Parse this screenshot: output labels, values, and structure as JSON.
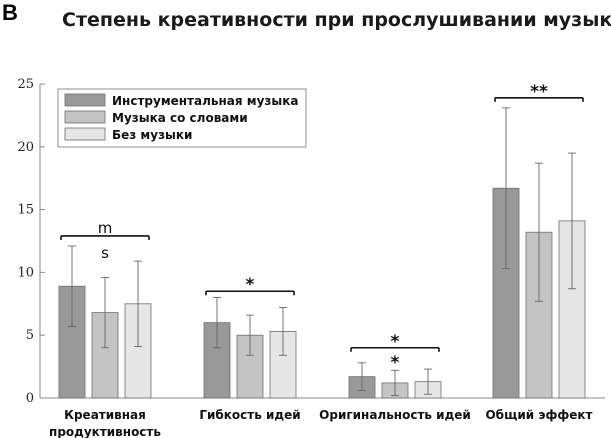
{
  "panel_label": "B",
  "chart_data": {
    "type": "bar",
    "title": "Степень креативности при прослушивании музыки",
    "xlabel": "",
    "ylabel": "",
    "ylim": [
      0,
      25
    ],
    "yticks": [
      0,
      5,
      10,
      15,
      20,
      25
    ],
    "grid": false,
    "legend_position": "top-left",
    "categories": [
      [
        "Креативная",
        "продуктивность"
      ],
      [
        "Гибкость идей"
      ],
      [
        "Оригинальность идей"
      ],
      [
        "Общий эффект"
      ]
    ],
    "series": [
      {
        "name": "Инструментальная музыка",
        "color": "#999999",
        "values": [
          8.9,
          6.0,
          1.7,
          16.7
        ],
        "error": [
          3.2,
          2.0,
          1.1,
          6.4
        ]
      },
      {
        "name": "Музыка со словами",
        "color": "#c4c4c4",
        "values": [
          6.8,
          5.0,
          1.2,
          13.2
        ],
        "error": [
          2.8,
          1.6,
          1.0,
          5.5
        ]
      },
      {
        "name": "Без музыки",
        "color": "#e6e6e6",
        "values": [
          7.5,
          5.3,
          1.3,
          14.1
        ],
        "error": [
          3.4,
          1.9,
          1.0,
          5.4
        ]
      }
    ],
    "annotations": [
      {
        "category": 0,
        "bracket": "m",
        "y": 12.9,
        "secondary": "s"
      },
      {
        "category": 1,
        "bracket": "*",
        "y": 8.5
      },
      {
        "category": 2,
        "bracket": "*",
        "y": 4.0,
        "secondary": "*"
      },
      {
        "category": 3,
        "bracket": "**",
        "y": 23.9
      }
    ]
  }
}
